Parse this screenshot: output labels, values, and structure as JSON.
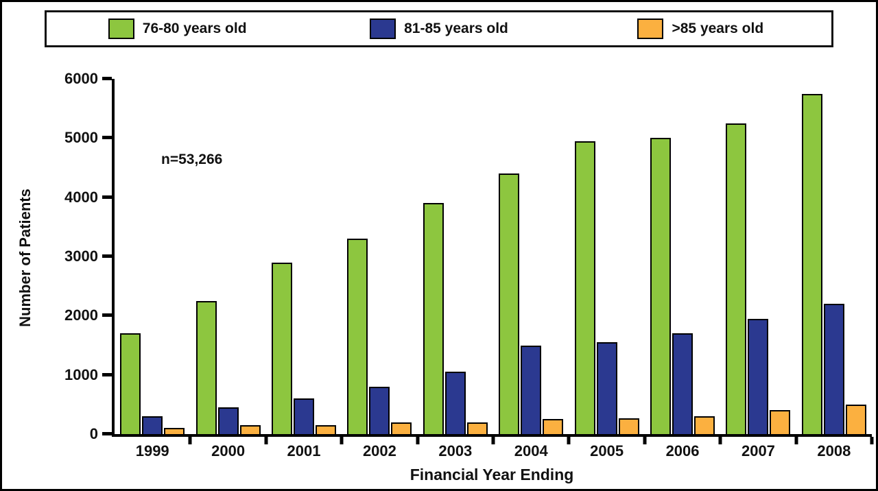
{
  "chart_data": {
    "type": "bar",
    "title": "",
    "xlabel": "Financial Year Ending",
    "ylabel": "Number of Patients",
    "annotation": "n=53,266",
    "categories": [
      "1999",
      "2000",
      "2001",
      "2002",
      "2003",
      "2004",
      "2005",
      "2006",
      "2007",
      "2008"
    ],
    "series": [
      {
        "name": "76-80 years old",
        "color": "#8DC63F",
        "values": [
          1700,
          2250,
          2900,
          3300,
          3900,
          4400,
          4950,
          5000,
          5250,
          5750
        ]
      },
      {
        "name": "81-85 years old",
        "color": "#2B3990",
        "values": [
          300,
          450,
          600,
          800,
          1050,
          1500,
          1550,
          1700,
          1950,
          2200
        ]
      },
      {
        "name": ">85 years old",
        "color": "#FBB040",
        "values": [
          100,
          150,
          150,
          200,
          200,
          250,
          270,
          300,
          400,
          500
        ]
      }
    ],
    "ylim": [
      0,
      6000
    ],
    "yticks": [
      0,
      1000,
      2000,
      3000,
      4000,
      5000,
      6000
    ],
    "grid": false,
    "legend_position": "top",
    "axis_color": "#000000"
  }
}
